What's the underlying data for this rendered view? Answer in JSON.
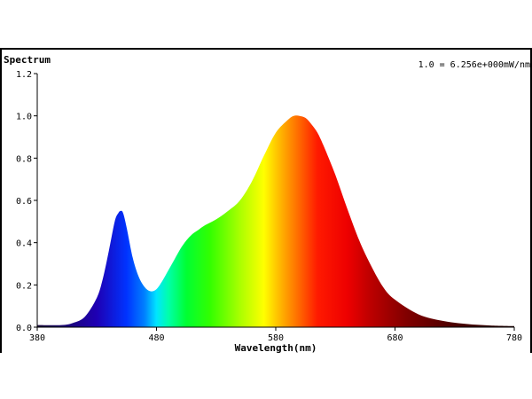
{
  "chart_data": {
    "type": "area",
    "title": "Spectrum",
    "annotation": "1.0 = 6.256e+000mW/nm",
    "xlabel": "Wavelength(nm)",
    "ylabel": "",
    "xlim": [
      380,
      780
    ],
    "ylim": [
      0,
      1.2
    ],
    "x_ticks": [
      "380",
      "480",
      "580",
      "680",
      "780"
    ],
    "y_ticks": [
      "0.0",
      "0.2",
      "0.4",
      "0.6",
      "0.8",
      "1.0",
      "1.2"
    ],
    "fill": "visible-spectrum wavelength colors",
    "grid": false,
    "x": [
      380,
      400,
      410,
      420,
      430,
      435,
      440,
      445,
      448,
      450,
      452,
      455,
      460,
      465,
      470,
      475,
      480,
      485,
      490,
      495,
      500,
      505,
      510,
      515,
      520,
      530,
      540,
      550,
      560,
      570,
      580,
      590,
      595,
      600,
      605,
      610,
      615,
      620,
      630,
      640,
      650,
      660,
      670,
      680,
      700,
      720,
      740,
      760,
      780
    ],
    "y": [
      0.01,
      0.01,
      0.02,
      0.05,
      0.14,
      0.23,
      0.36,
      0.5,
      0.54,
      0.55,
      0.54,
      0.47,
      0.33,
      0.24,
      0.19,
      0.17,
      0.18,
      0.22,
      0.27,
      0.32,
      0.37,
      0.41,
      0.44,
      0.46,
      0.48,
      0.51,
      0.55,
      0.6,
      0.69,
      0.81,
      0.92,
      0.98,
      1.0,
      1.0,
      0.99,
      0.96,
      0.92,
      0.86,
      0.72,
      0.56,
      0.41,
      0.29,
      0.19,
      0.13,
      0.06,
      0.03,
      0.015,
      0.008,
      0.005
    ]
  }
}
